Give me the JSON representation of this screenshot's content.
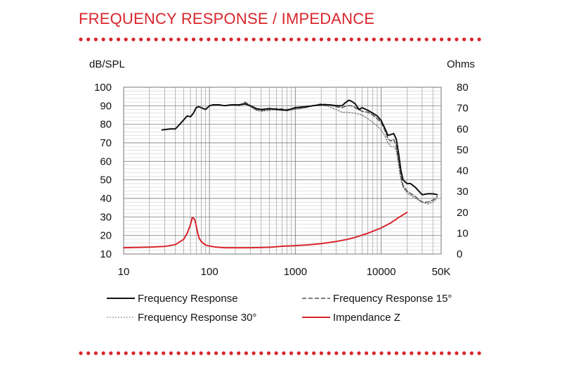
{
  "title": "FREQUENCY RESPONSE / IMPEDANCE",
  "colors": {
    "accent": "#d9252b",
    "grid": "#8a8a8a",
    "response": "#111111",
    "r15": "#555555",
    "r30": "#8a8a8a",
    "impedance": "#d9252b"
  },
  "chart_data": {
    "type": "line",
    "x_scale": "log",
    "xlim": [
      10,
      50000
    ],
    "x_ticks": [
      10,
      100,
      1000,
      10000,
      50000
    ],
    "x_tick_labels": [
      "10",
      "100",
      "1000",
      "10000",
      "50K"
    ],
    "ylabel_left": "dB/SPL",
    "ylabel_right": "Ohms",
    "ylim_left": [
      10,
      100
    ],
    "ylim_right": [
      0,
      80
    ],
    "y_ticks_left": [
      10,
      20,
      30,
      40,
      50,
      60,
      70,
      80,
      90,
      100
    ],
    "y_ticks_right": [
      0,
      10,
      20,
      30,
      40,
      50,
      60,
      70,
      80
    ],
    "grid": true,
    "legend": "bottom",
    "series": [
      {
        "name": "Frequency Response",
        "axis": "left",
        "style": "solid",
        "x": [
          28,
          35,
          40,
          45,
          55,
          60,
          65,
          70,
          75,
          80,
          90,
          100,
          110,
          130,
          150,
          180,
          220,
          260,
          300,
          350,
          400,
          500,
          600,
          800,
          1000,
          1300,
          1600,
          2000,
          2500,
          3000,
          3500,
          3800,
          4200,
          4500,
          5000,
          5500,
          6000,
          7000,
          8000,
          9000,
          10000,
          11000,
          12000,
          13000,
          14000,
          15000,
          16000,
          17000,
          18000,
          20000,
          22000,
          25000,
          30000,
          35000,
          40000,
          45000
        ],
        "y": [
          77,
          77.5,
          77.5,
          80,
          84.5,
          84,
          86,
          89,
          89.5,
          89,
          88,
          90,
          90.5,
          90.5,
          90,
          90.5,
          90.5,
          91,
          90,
          88.5,
          88,
          88.5,
          88,
          87.5,
          89,
          89.5,
          90,
          90.5,
          90.5,
          90,
          90,
          91.5,
          93,
          92.5,
          91,
          88,
          89,
          87.5,
          86,
          84.5,
          82,
          78,
          74,
          74.5,
          75,
          72,
          64,
          55,
          50,
          48,
          48,
          46,
          42,
          42.5,
          42.5,
          42
        ]
      },
      {
        "name": "Frequency Response 15°",
        "axis": "left",
        "style": "dashed",
        "x": [
          220,
          260,
          300,
          350,
          400,
          500,
          600,
          800,
          1000,
          1300,
          1600,
          2000,
          2500,
          3000,
          3500,
          4000,
          4500,
          5000,
          6000,
          7000,
          8000,
          9000,
          10000,
          11000,
          12000,
          13000,
          14000,
          15000,
          16000,
          17000,
          18000,
          20000,
          25000,
          30000,
          35000,
          40000,
          45000
        ],
        "y": [
          90,
          92,
          90,
          88,
          87.5,
          88,
          88.5,
          88,
          88.5,
          89,
          90,
          91,
          90.5,
          89.5,
          89,
          90,
          90,
          89,
          87,
          86.5,
          85,
          83,
          81,
          77,
          72,
          71,
          72,
          68,
          60,
          52,
          47,
          44,
          41,
          38,
          38,
          39,
          41
        ]
      },
      {
        "name": "Frequency Response 30°",
        "axis": "left",
        "style": "dotted",
        "x": [
          220,
          260,
          300,
          350,
          400,
          500,
          600,
          800,
          1000,
          1300,
          1600,
          2000,
          2500,
          3000,
          3500,
          4000,
          5000,
          6000,
          7000,
          8000,
          9000,
          10000,
          11000,
          12000,
          13000,
          14000,
          15000,
          16000,
          17000,
          18000,
          20000,
          25000,
          30000,
          35000,
          40000,
          45000
        ],
        "y": [
          90,
          91.5,
          89.5,
          87.5,
          87,
          87.5,
          88,
          87.5,
          88,
          89,
          90,
          90.5,
          89.5,
          88,
          86.5,
          86.5,
          86,
          85,
          83,
          81,
          79,
          77,
          74,
          70,
          68,
          68,
          66,
          58,
          50,
          46,
          43,
          40,
          38,
          37,
          38,
          40
        ]
      },
      {
        "name": "Impendance Z",
        "axis": "right",
        "style": "solid",
        "x": [
          10,
          20,
          30,
          40,
          50,
          55,
          60,
          63,
          66,
          68,
          70,
          73,
          76,
          80,
          90,
          100,
          120,
          150,
          200,
          300,
          500,
          700,
          1000,
          1500,
          2000,
          3000,
          4000,
          5000,
          7000,
          10000,
          13000,
          16000,
          20000
        ],
        "y": [
          3,
          3.3,
          3.6,
          4.5,
          7,
          10,
          14,
          17.5,
          17,
          16,
          13.5,
          10,
          7.5,
          6,
          4.3,
          3.8,
          3.3,
          3,
          3,
          3,
          3.2,
          3.7,
          4,
          4.5,
          5,
          6,
          7,
          8,
          10,
          12.5,
          15,
          17.5,
          20
        ]
      }
    ]
  }
}
